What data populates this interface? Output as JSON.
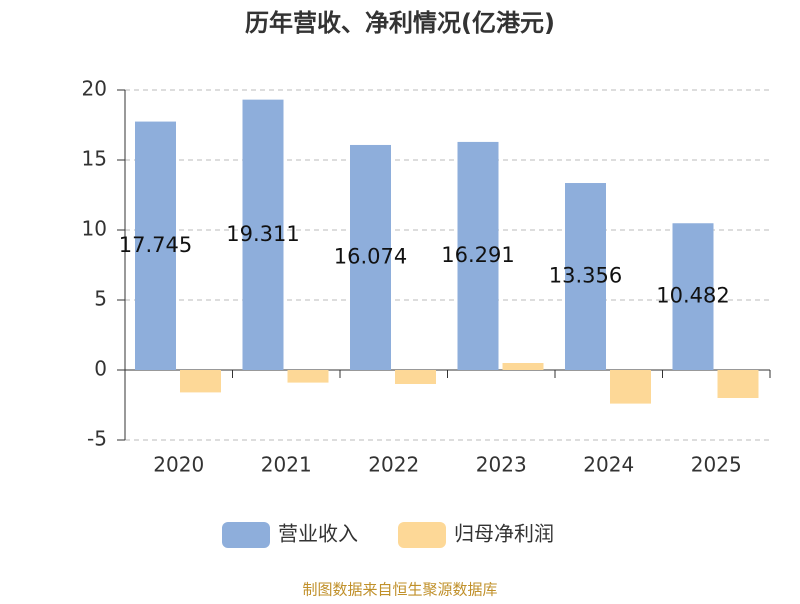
{
  "chart_data": {
    "type": "bar",
    "title": "历年营收、净利情况(亿港元)",
    "categories": [
      "2020",
      "2021",
      "2022",
      "2023",
      "2024",
      "2025"
    ],
    "series": [
      {
        "name": "营业收入",
        "color": "#8eaedb",
        "values": [
          17.745,
          19.311,
          16.074,
          16.291,
          13.356,
          10.482
        ],
        "show_labels": true
      },
      {
        "name": "归母净利润",
        "color": "#fdd897",
        "values": [
          -1.6,
          -0.9,
          -1.0,
          0.5,
          -2.4,
          -2.0
        ],
        "show_labels": false
      }
    ],
    "ylim": [
      -5,
      20
    ],
    "yticks": [
      -5,
      0,
      5,
      10,
      15,
      20
    ],
    "grid": true,
    "source": "制图数据来自恒生聚源数据库"
  }
}
